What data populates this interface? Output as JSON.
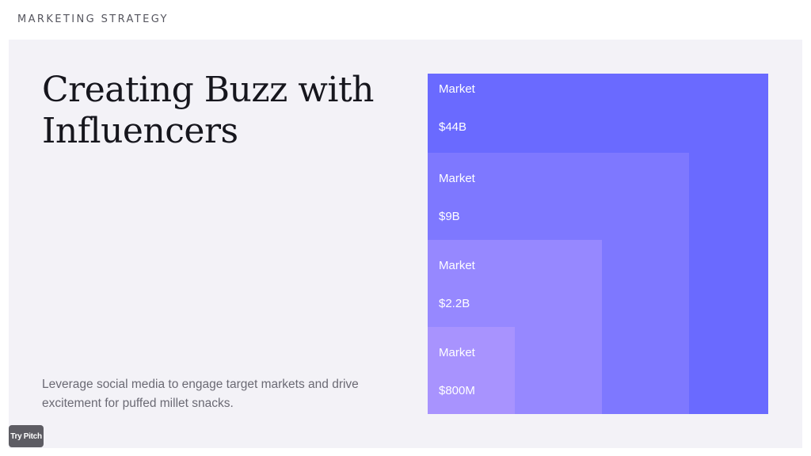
{
  "header": {
    "section_label": "MARKETING STRATEGY"
  },
  "slide": {
    "title": "Creating Buzz with Influencers",
    "subtitle": "Leverage social media to engage target markets and drive excitement for puffed millet snacks."
  },
  "markets": [
    {
      "label": "Market",
      "value": "$44B",
      "color": "#6a6aff"
    },
    {
      "label": "Market",
      "value": "$9B",
      "color": "#7e78ff"
    },
    {
      "label": "Market",
      "value": "$2.2B",
      "color": "#9688ff"
    },
    {
      "label": "Market",
      "value": "$800M",
      "color": "#a893fe"
    }
  ],
  "footer": {
    "badge_label": "Try Pitch"
  }
}
